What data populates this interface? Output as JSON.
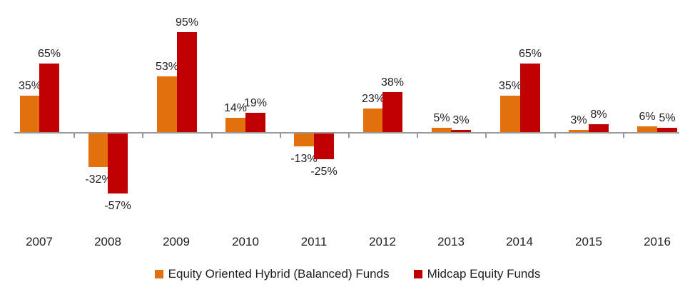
{
  "chart_data": {
    "type": "bar",
    "title": "",
    "xlabel": "",
    "ylabel": "",
    "categories": [
      "2007",
      "2008",
      "2009",
      "2010",
      "2011",
      "2012",
      "2013",
      "2014",
      "2015",
      "2016"
    ],
    "series": [
      {
        "name": "Equity Oriented Hybrid (Balanced) Funds",
        "color": "#E2700C",
        "values": [
          35,
          -32,
          53,
          14,
          -13,
          23,
          5,
          35,
          3,
          6
        ],
        "labels": [
          "35%",
          "-32%",
          "53%",
          "14%",
          "-13%",
          "23%",
          "5%",
          "35%",
          "3%",
          "6%"
        ]
      },
      {
        "name": "Midcap Equity Funds",
        "color": "#C00000",
        "values": [
          65,
          -57,
          95,
          19,
          -25,
          38,
          3,
          65,
          8,
          5
        ],
        "labels": [
          "65%",
          "-57%",
          "95%",
          "19%",
          "-25%",
          "38%",
          "3%",
          "65%",
          "8%",
          "5%"
        ]
      }
    ],
    "value_suffix": "%",
    "data_labels": "outside-end",
    "ylim": [
      -75,
      100
    ],
    "grid": false,
    "y_axis_ticks_visible": false,
    "legend_position": "bottom-center",
    "axis_color": "#999999",
    "text_color": "#1f1f1f",
    "background_color": "#ffffff"
  }
}
